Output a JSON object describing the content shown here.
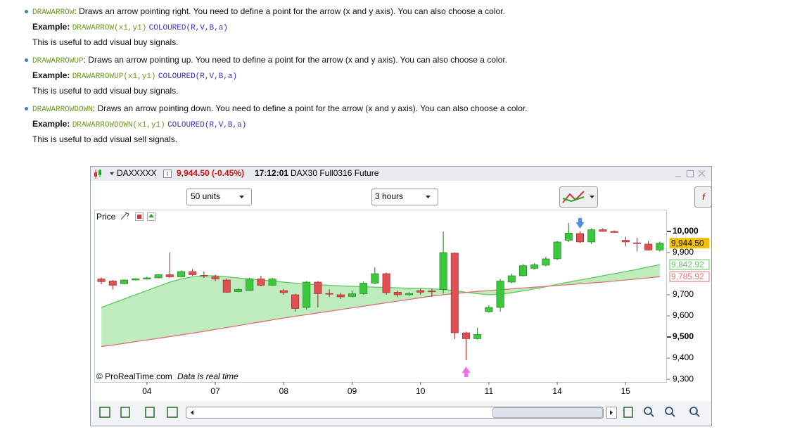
{
  "items": [
    {
      "keyword": "DRAWARROW",
      "description": ": Draws an arrow pointing right. You need to define a point for the arrow (x and y axis). You can also choose a color.",
      "example_label": "Example:",
      "example_code": "DRAWARROW(x1,y1)",
      "example_colour": "COLOURED(R,V,B,a)",
      "note": "This is useful to add visual buy signals."
    },
    {
      "keyword": "DRAWARROWUP",
      "description": ": Draws an arrow pointing up. You need to define a point for the arrow (x and y axis). You can also choose a color.",
      "example_label": "Example:",
      "example_code": "DRAWARROWUP(x1,y1)",
      "example_colour": "COLOURED(R,V,B,a)",
      "note": "This is useful to add visual buy signals."
    },
    {
      "keyword": "DRAWARROWDOWN",
      "description": ": Draws an arrow pointing down. You need to define a point for the arrow (x and y axis). You can also choose a color.",
      "example_label": "Example:",
      "example_code": "DRAWARROWDOWN(x1,y1)",
      "example_colour": "COLOURED(R,V,B,a)",
      "note": "This is useful to add visual sell signals."
    }
  ],
  "window": {
    "symbol": "DAXXXXX",
    "price_change": "9,944.50 (-0.45%)",
    "time": "17:12:01",
    "instrument": "DAX30 Full0316 Future",
    "units": "50 units",
    "period": "3 hours",
    "panel_label": "Price",
    "copyright": "© ProRealTime.com",
    "realtime_note": "Data is real time"
  },
  "chart_data": {
    "type": "candlestick",
    "categories": [
      null,
      null,
      null,
      null,
      "04",
      null,
      null,
      null,
      null,
      null,
      "07",
      null,
      null,
      null,
      null,
      null,
      "08",
      null,
      null,
      null,
      null,
      null,
      "09",
      null,
      null,
      null,
      null,
      null,
      "10",
      null,
      null,
      null,
      null,
      null,
      "11",
      null,
      null,
      null,
      null,
      null,
      "14",
      null,
      null,
      null,
      null,
      null,
      "15",
      null,
      null,
      null
    ],
    "open": [
      9775,
      9765,
      9752,
      9770,
      9774,
      9780,
      9795,
      9785,
      9810,
      9792,
      9785,
      9770,
      9715,
      9720,
      9775,
      9745,
      9720,
      9700,
      9640,
      9760,
      9706,
      9700,
      9692,
      9705,
      9755,
      9800,
      9712,
      9700,
      9720,
      9718,
      9725,
      9897,
      9520,
      9492,
      9620,
      9640,
      9760,
      9790,
      9825,
      9840,
      9870,
      9958,
      9990,
      9950,
      10008,
      10000,
      9958,
      9946,
      9940,
      9912
    ],
    "high": [
      9782,
      9770,
      9772,
      9778,
      9785,
      9798,
      9900,
      9815,
      9822,
      9810,
      9795,
      9778,
      9730,
      9780,
      9790,
      9780,
      9728,
      9705,
      9765,
      9765,
      9725,
      9710,
      9720,
      9762,
      9830,
      9805,
      9720,
      9712,
      9728,
      9730,
      10000,
      9900,
      9525,
      9545,
      9650,
      9775,
      9800,
      9845,
      9850,
      9880,
      9955,
      10040,
      10000,
      10015,
      10015,
      10005,
      9975,
      9970,
      9955,
      9952
    ],
    "low": [
      9750,
      9725,
      9750,
      9768,
      9772,
      9778,
      9780,
      9783,
      9790,
      9780,
      9765,
      9710,
      9712,
      9718,
      9740,
      9743,
      9700,
      9620,
      9630,
      9640,
      9690,
      9680,
      9688,
      9700,
      9750,
      9700,
      9690,
      9695,
      9700,
      9690,
      9705,
      9490,
      9390,
      9488,
      9615,
      9620,
      9755,
      9788,
      9820,
      9835,
      9865,
      9950,
      9945,
      9940,
      9998,
      9993,
      9930,
      9905,
      9910,
      9905
    ],
    "close": [
      9762,
      9745,
      9770,
      9776,
      9780,
      9795,
      9785,
      9810,
      9795,
      9790,
      9775,
      9712,
      9725,
      9775,
      9745,
      9775,
      9710,
      9635,
      9760,
      9705,
      9704,
      9690,
      9705,
      9755,
      9800,
      9710,
      9700,
      9706,
      9712,
      9714,
      9900,
      9520,
      9492,
      9512,
      9640,
      9765,
      9790,
      9838,
      9842,
      9870,
      9950,
      9992,
      9950,
      10008,
      10000,
      9995,
      9950,
      9944,
      9912,
      9944.5
    ],
    "up_color": "#3cc83c",
    "down_color": "#e05050",
    "moving_averages": [
      {
        "color": "#5cc85c",
        "values": [
          9640,
          9660,
          9680,
          9700,
          9720,
          9740,
          9760,
          9775,
          9785,
          9790,
          9790,
          9785,
          9780,
          9775,
          9770,
          9765,
          9760,
          9755,
          9750,
          9748,
          9745,
          9742,
          9740,
          9738,
          9736,
          9735,
          9733,
          9731,
          9730,
          9728,
          9725,
          9720,
          9712,
          9705,
          9700,
          9702,
          9710,
          9718,
          9728,
          9738,
          9750,
          9760,
          9770,
          9780,
          9790,
          9800,
          9810,
          9820,
          9832,
          9842.92
        ]
      },
      {
        "color": "#e07070",
        "values": [
          9455,
          9462,
          9470,
          9478,
          9486,
          9494,
          9502,
          9510,
          9518,
          9527,
          9536,
          9545,
          9554,
          9563,
          9572,
          9581,
          9590,
          9598,
          9606,
          9614,
          9622,
          9630,
          9638,
          9646,
          9654,
          9662,
          9670,
          9678,
          9686,
          9694,
          9700,
          9706,
          9711,
          9716,
          9720,
          9724,
          9728,
          9732,
          9736,
          9740,
          9744,
          9748,
          9752,
          9756,
          9760,
          9765,
          9770,
          9775,
          9780,
          9785.92
        ]
      }
    ],
    "area_color": "#6fd46f",
    "ylim": [
      9287,
      10103
    ],
    "yticks": [
      {
        "value": 10000,
        "label": "10,000"
      },
      {
        "value": 9900,
        "label": "9,900"
      },
      {
        "value": 9700,
        "label": "9,700"
      },
      {
        "value": 9600,
        "label": "9,600"
      },
      {
        "value": 9500,
        "label": "9,500"
      },
      {
        "value": 9400,
        "label": "9,400"
      },
      {
        "value": 9300,
        "label": "9,300"
      }
    ],
    "bold_ticks": [
      10000,
      9500
    ],
    "price_labels": [
      {
        "value": 9944.5,
        "label": "9,944.50",
        "color": "#f2c200"
      },
      {
        "value": 9842.92,
        "label": "9,842.92",
        "color": "#5cc85c"
      },
      {
        "value": 9785.92,
        "label": "9,785.92",
        "color": "#e07070"
      }
    ],
    "arrows": [
      {
        "direction": "down",
        "index": 42,
        "value": 10037,
        "color": "#4a8ee0"
      },
      {
        "direction": "up",
        "index": 32,
        "value": 9337,
        "color": "#f070f0"
      }
    ]
  }
}
